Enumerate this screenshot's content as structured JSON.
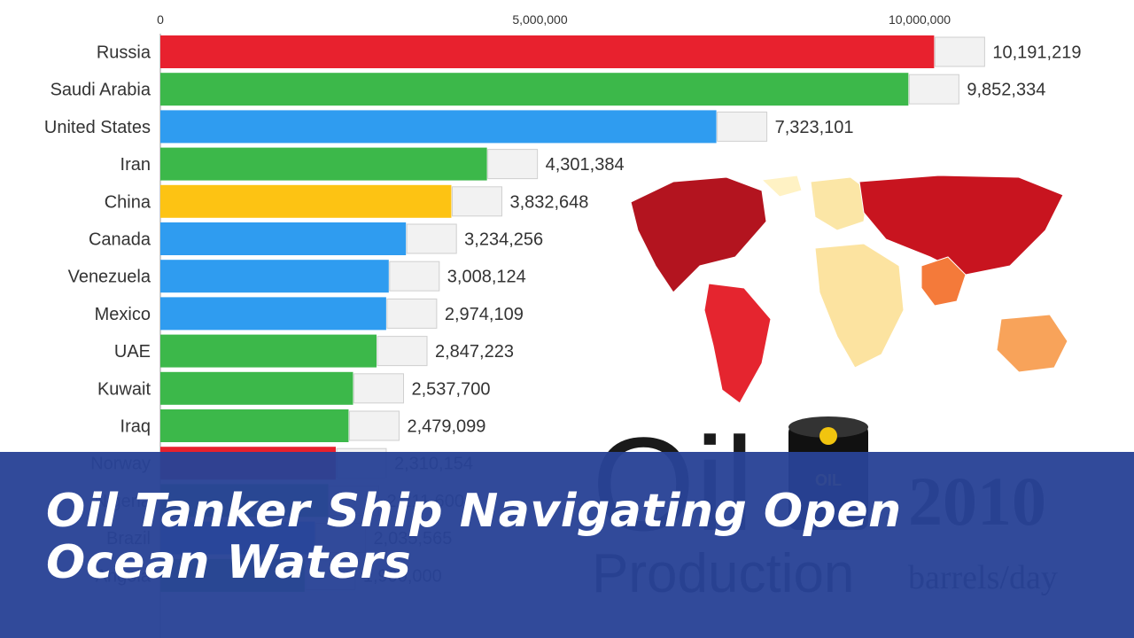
{
  "chart_data": {
    "type": "bar",
    "orientation": "horizontal",
    "categories": [
      "Russia",
      "Saudi Arabia",
      "United States",
      "Iran",
      "China",
      "Canada",
      "Venezuela",
      "Mexico",
      "UAE",
      "Kuwait",
      "Iraq",
      "Norway",
      "Nigeria",
      "Brazil",
      "Angola"
    ],
    "values": [
      10191219,
      9852334,
      7323101,
      4301384,
      3832648,
      3234256,
      3008124,
      2974109,
      2847223,
      2537700,
      2479099,
      2310154,
      2211600,
      2035565,
      1900000
    ],
    "value_labels": [
      "10,191,219",
      "9,852,334",
      "7,323,101",
      "4,301,384",
      "3,832,648",
      "3,234,256",
      "3,008,124",
      "2,974,109",
      "2,847,223",
      "2,537,700",
      "2,479,099",
      "2,310,154",
      "2,211,600",
      "2,035,565",
      "1,900,000"
    ],
    "bar_colors": [
      "#e8212e",
      "#3cb84a",
      "#2f9cf0",
      "#3cb84a",
      "#fdc313",
      "#2f9cf0",
      "#2f9cf0",
      "#2f9cf0",
      "#3cb84a",
      "#3cb84a",
      "#3cb84a",
      "#e8212e",
      "#3cb84a",
      "#2f9cf0",
      "#3cb84a"
    ],
    "xlim": [
      0,
      11000000
    ],
    "x_ticks": [
      0,
      5000000,
      10000000
    ],
    "x_tick_labels": [
      "0",
      "5,000,000",
      "10,000,000"
    ],
    "grid": false,
    "overlay": {
      "title_word": "Oil",
      "subtitle": "Production",
      "year": "2010",
      "unit": "barrels/day",
      "barrel_label": "OIL"
    }
  },
  "caption": {
    "text": "Oil Tanker Ship Navigating Open Ocean Waters",
    "background_color": "#2a4496"
  }
}
